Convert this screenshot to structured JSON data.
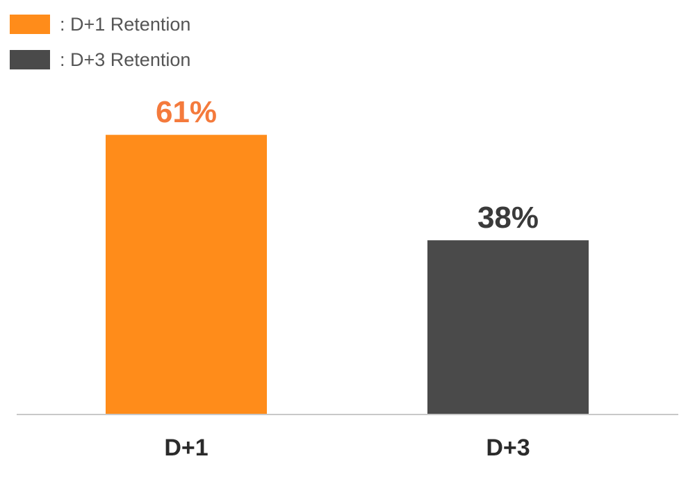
{
  "chart_data": {
    "type": "bar",
    "categories": [
      "D+1",
      "D+3"
    ],
    "values": [
      61,
      38
    ],
    "value_labels": [
      "61%",
      "38%"
    ],
    "colors": [
      "#ff8c1a",
      "#4a4a4a"
    ],
    "value_label_colors": [
      "#f47a3c",
      "#3a3a3a"
    ],
    "ylim": [
      0,
      68
    ],
    "grid": false,
    "legend_position": "top-left",
    "legend": [
      {
        "label": ": D+1 Retention",
        "color": "#ff8c1a"
      },
      {
        "label": ": D+3 Retention",
        "color": "#4a4a4a"
      }
    ]
  },
  "colors": {
    "axis": "#c8c8c8",
    "category_label": "#2b2b2b"
  }
}
